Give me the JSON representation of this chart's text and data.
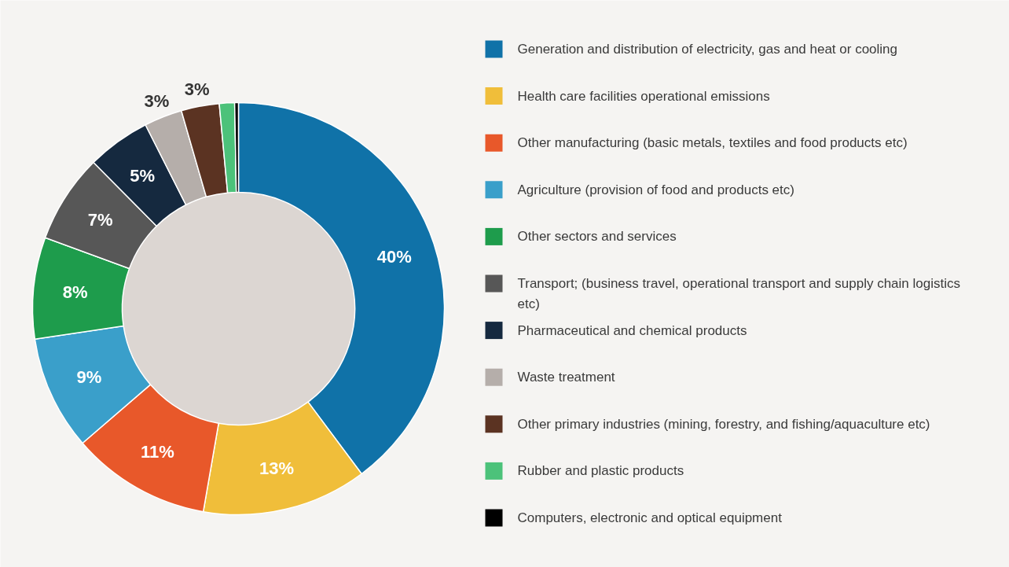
{
  "chart_data": {
    "type": "donut",
    "categories": [
      "Generation and distribution of electricity, gas and heat or cooling",
      "Health care facilities operational emissions",
      "Other manufacturing (basic metals, textiles and food products etc)",
      "Agriculture (provision of food and products etc)",
      "Other sectors and services",
      "Transport; (business travel, operational transport and supply chain logistics etc)",
      "Pharmaceutical and chemical products",
      "Waste treatment",
      "Other primary industries (mining, forestry, and fishing/aquaculture etc)",
      "Rubber and plastic products",
      "Computers, electronic and optical equipment"
    ],
    "values": [
      40,
      13,
      11,
      9,
      8,
      7,
      5,
      3,
      3,
      1.2,
      0.3
    ],
    "value_labels": [
      "40%",
      "13%",
      "11%",
      "9%",
      "8%",
      "7%",
      "5%",
      "3%",
      "3%",
      null,
      null
    ],
    "colors": [
      "#1072a8",
      "#f0be3a",
      "#e8582a",
      "#3a9fca",
      "#1e9c4c",
      "#575757",
      "#15293f",
      "#b5aeaa",
      "#5b3322",
      "#4cc27a",
      "#000000"
    ],
    "legend": "right"
  }
}
